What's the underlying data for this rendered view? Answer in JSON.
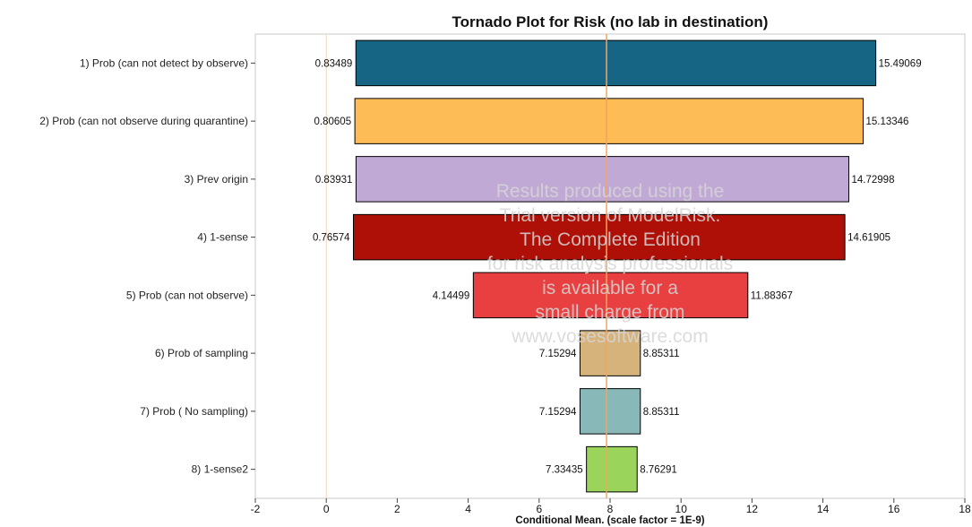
{
  "chart_data": {
    "type": "bar",
    "orientation": "horizontal",
    "title": "Tornado Plot for Risk (no lab in destination)",
    "xlabel": "Conditional Mean. (scale factor = 1E-9)",
    "ylabel": "",
    "xlim": [
      -2,
      18
    ],
    "xticks": [
      "-2",
      "0",
      "2",
      "4",
      "6",
      "8",
      "10",
      "12",
      "14",
      "16",
      "18"
    ],
    "baseline": 7.9,
    "grid": false,
    "categories": [
      "1) Prob (can not detect by observe)",
      "2) Prob (can not observe during quarantine)",
      "3) Prev origin",
      "4) 1-sense",
      "5) Prob (can not observe)",
      "6) Prob of sampling",
      "7) Prob ( No sampling)",
      "8) 1-sense2"
    ],
    "low": [
      0.83489,
      0.80605,
      0.83931,
      0.76574,
      4.14499,
      7.15294,
      7.15294,
      7.33435
    ],
    "high": [
      15.49069,
      15.13346,
      14.72998,
      14.61905,
      11.88367,
      8.85311,
      8.85311,
      8.76291
    ],
    "low_labels": [
      "0.83489",
      "0.80605",
      "0.83931",
      "0.76574",
      "4.14499",
      "7.15294",
      "7.15294",
      "7.33435"
    ],
    "high_labels": [
      "15.49069",
      "15.13346",
      "14.72998",
      "14.61905",
      "11.88367",
      "8.85311",
      "8.85311",
      "8.76291"
    ],
    "colors": [
      "#176584",
      "#fdbc55",
      "#c1a9d6",
      "#ae0f06",
      "#e84040",
      "#d7b37c",
      "#88b9b8",
      "#9bd45a"
    ],
    "baseline_color": "#f4a460",
    "watermark": [
      "Results produced using the",
      "Trial version of ModelRisk.",
      "The Complete Edition",
      "for risk analysis professionals",
      "is available for a",
      "small charge from",
      "www.vosesoftware.com"
    ]
  }
}
